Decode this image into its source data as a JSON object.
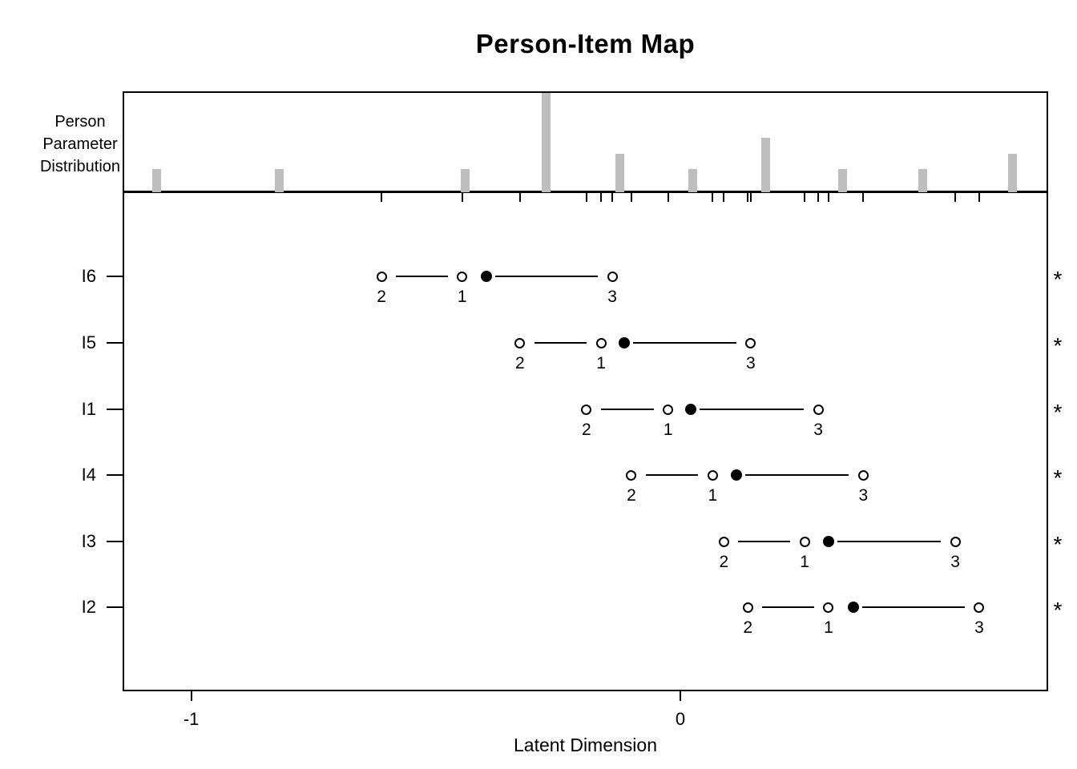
{
  "title": "Person-Item Map",
  "top_panel": {
    "label_lines": [
      "Person",
      "Parameter",
      "Distribution"
    ]
  },
  "x_axis": {
    "label": "Latent Dimension",
    "ticks": [
      {
        "value": -1,
        "label": "-1"
      },
      {
        "value": 0,
        "label": "0"
      }
    ]
  },
  "colors": {
    "bar_fill": "#bebebe",
    "line": "#000000",
    "text": "#000000",
    "background": "#ffffff"
  },
  "chart_data": {
    "type": "person-item-map",
    "title": "Person-Item Map",
    "xlabel": "Latent Dimension",
    "x_range": [
      -1.14,
      0.75
    ],
    "x_tick_values": [
      -1,
      0
    ],
    "person_histogram": {
      "description": "Person Parameter Distribution, bars rise from panel baseline",
      "bars": [
        {
          "theta": -1.07,
          "count": 3
        },
        {
          "theta": -0.82,
          "count": 3
        },
        {
          "theta": -0.44,
          "count": 3
        },
        {
          "theta": -0.275,
          "count": 13
        },
        {
          "theta": -0.123,
          "count": 5
        },
        {
          "theta": 0.026,
          "count": 3
        },
        {
          "theta": 0.174,
          "count": 7
        },
        {
          "theta": 0.331,
          "count": 3
        },
        {
          "theta": 0.495,
          "count": 3
        },
        {
          "theta": 0.679,
          "count": 5
        }
      ]
    },
    "items": [
      {
        "name": "I6",
        "location": -0.397,
        "star": "*",
        "thresholds": [
          {
            "label": "2",
            "value": -0.611
          },
          {
            "label": "1",
            "value": -0.446
          },
          {
            "label": "3",
            "value": -0.139
          }
        ]
      },
      {
        "name": "I5",
        "location": -0.115,
        "star": "*",
        "thresholds": [
          {
            "label": "2",
            "value": -0.328
          },
          {
            "label": "1",
            "value": -0.162
          },
          {
            "label": "3",
            "value": 0.144
          }
        ]
      },
      {
        "name": "I1",
        "location": 0.021,
        "star": "*",
        "thresholds": [
          {
            "label": "2",
            "value": -0.192
          },
          {
            "label": "1",
            "value": -0.025
          },
          {
            "label": "3",
            "value": 0.282
          }
        ]
      },
      {
        "name": "I4",
        "location": 0.115,
        "star": "*",
        "thresholds": [
          {
            "label": "2",
            "value": -0.1
          },
          {
            "label": "1",
            "value": 0.066
          },
          {
            "label": "3",
            "value": 0.374
          }
        ]
      },
      {
        "name": "I3",
        "location": 0.303,
        "star": "*",
        "thresholds": [
          {
            "label": "2",
            "value": 0.089
          },
          {
            "label": "1",
            "value": 0.254
          },
          {
            "label": "3",
            "value": 0.562
          }
        ]
      },
      {
        "name": "I2",
        "location": 0.354,
        "star": "*",
        "thresholds": [
          {
            "label": "2",
            "value": 0.138
          },
          {
            "label": "1",
            "value": 0.303
          },
          {
            "label": "3",
            "value": 0.611
          }
        ]
      }
    ]
  }
}
